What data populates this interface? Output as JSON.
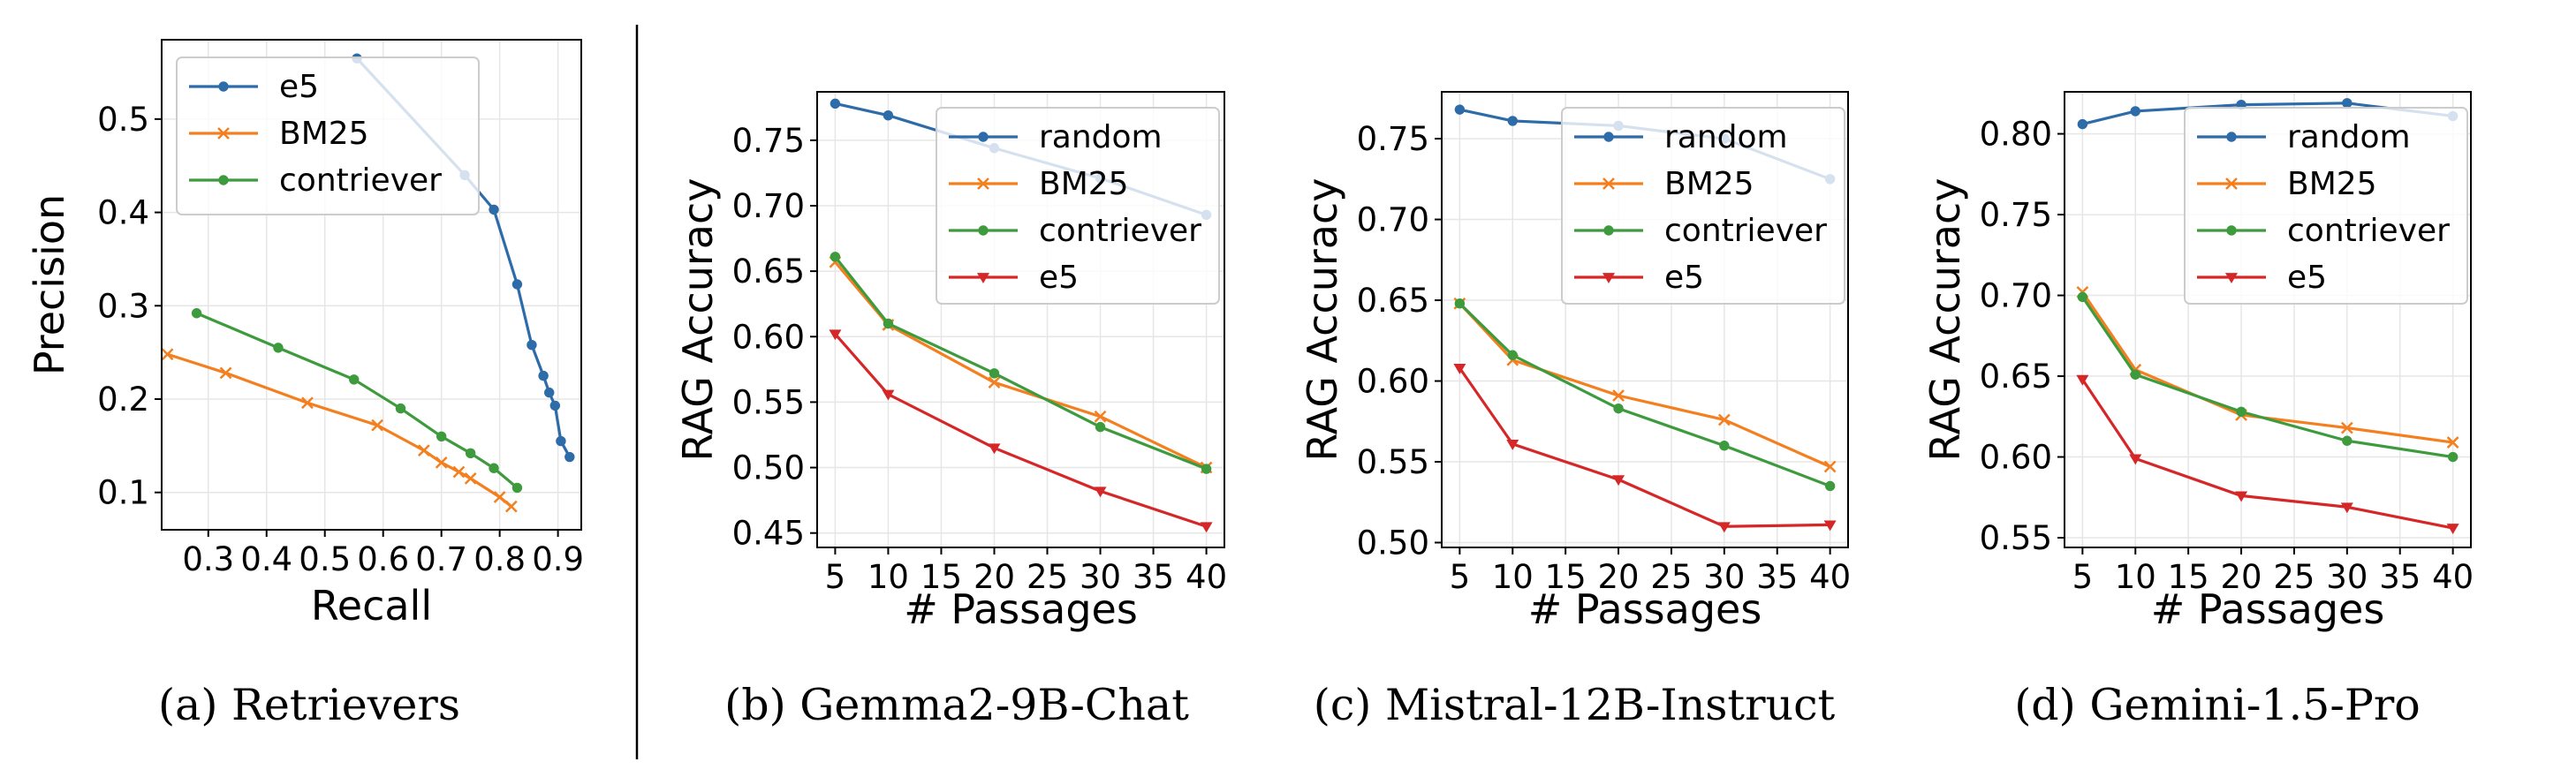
{
  "chart_data": [
    {
      "type": "line",
      "caption": "(a)  Retrievers",
      "xlabel": "Recall",
      "ylabel": "Precision",
      "xlim": [
        0.22,
        0.94
      ],
      "ylim": [
        0.06,
        0.585
      ],
      "xticks": [
        0.3,
        0.4,
        0.5,
        0.6,
        0.7,
        0.8,
        0.9
      ],
      "xtick_labels": [
        "0.3",
        "0.4",
        "0.5",
        "0.6",
        "0.7",
        "0.8",
        "0.9"
      ],
      "yticks": [
        0.1,
        0.2,
        0.3,
        0.4,
        0.5
      ],
      "ytick_labels": [
        "0.1",
        "0.2",
        "0.3",
        "0.4",
        "0.5"
      ],
      "grid": true,
      "legend_position": "top-left",
      "series": [
        {
          "name": "e5",
          "color": "#2d6ba9",
          "marker": "dot",
          "x": [
            0.555,
            0.74,
            0.79,
            0.83,
            0.855,
            0.875,
            0.885,
            0.895,
            0.905,
            0.92
          ],
          "y": [
            0.565,
            0.44,
            0.403,
            0.323,
            0.258,
            0.225,
            0.207,
            0.193,
            0.155,
            0.138
          ]
        },
        {
          "name": "BM25",
          "color": "#f47f1f",
          "marker": "x",
          "x": [
            0.23,
            0.33,
            0.47,
            0.59,
            0.67,
            0.7,
            0.73,
            0.75,
            0.8,
            0.82
          ],
          "y": [
            0.248,
            0.228,
            0.196,
            0.172,
            0.145,
            0.132,
            0.122,
            0.115,
            0.095,
            0.085
          ]
        },
        {
          "name": "contriever",
          "color": "#3d9b3d",
          "marker": "dot",
          "x": [
            0.28,
            0.42,
            0.55,
            0.63,
            0.7,
            0.75,
            0.79,
            0.83
          ],
          "y": [
            0.292,
            0.255,
            0.221,
            0.19,
            0.16,
            0.142,
            0.126,
            0.105
          ]
        }
      ]
    },
    {
      "type": "line",
      "caption": "(b)  Gemma2-9B-Chat",
      "xlabel": "# Passages",
      "ylabel": "RAG Accuracy",
      "xlim": [
        3.3,
        41.7
      ],
      "ylim": [
        0.439,
        0.787
      ],
      "xticks": [
        5,
        10,
        15,
        20,
        25,
        30,
        35,
        40
      ],
      "xtick_labels": [
        "5",
        "10",
        "15",
        "20",
        "25",
        "30",
        "35",
        "40"
      ],
      "yticks": [
        0.45,
        0.5,
        0.55,
        0.6,
        0.65,
        0.7,
        0.75
      ],
      "ytick_labels": [
        "0.45",
        "0.50",
        "0.55",
        "0.60",
        "0.65",
        "0.70",
        "0.75"
      ],
      "grid": true,
      "legend_position": "upper-right",
      "series": [
        {
          "name": "random",
          "color": "#2d6ba9",
          "marker": "dot",
          "x": [
            5,
            10,
            20,
            30,
            40
          ],
          "y": [
            0.778,
            0.769,
            0.744,
            0.721,
            0.693
          ]
        },
        {
          "name": "BM25",
          "color": "#f47f1f",
          "marker": "x",
          "x": [
            5,
            10,
            20,
            30,
            40
          ],
          "y": [
            0.657,
            0.609,
            0.565,
            0.539,
            0.5
          ]
        },
        {
          "name": "contriever",
          "color": "#3d9b3d",
          "marker": "dot",
          "x": [
            5,
            10,
            20,
            30,
            40
          ],
          "y": [
            0.661,
            0.61,
            0.572,
            0.531,
            0.499
          ]
        },
        {
          "name": "e5",
          "color": "#d62728",
          "marker": "triangle",
          "x": [
            5,
            10,
            20,
            30,
            40
          ],
          "y": [
            0.602,
            0.556,
            0.515,
            0.482,
            0.455
          ]
        }
      ]
    },
    {
      "type": "line",
      "caption": "(c)  Mistral-12B-Instruct",
      "xlabel": "# Passages",
      "ylabel": "RAG Accuracy",
      "xlim": [
        3.3,
        41.7
      ],
      "ylim": [
        0.497,
        0.779
      ],
      "xticks": [
        5,
        10,
        15,
        20,
        25,
        30,
        35,
        40
      ],
      "xtick_labels": [
        "5",
        "10",
        "15",
        "20",
        "25",
        "30",
        "35",
        "40"
      ],
      "yticks": [
        0.5,
        0.55,
        0.6,
        0.65,
        0.7,
        0.75
      ],
      "ytick_labels": [
        "0.50",
        "0.55",
        "0.60",
        "0.65",
        "0.70",
        "0.75"
      ],
      "grid": true,
      "legend_position": "upper-right",
      "series": [
        {
          "name": "random",
          "color": "#2d6ba9",
          "marker": "dot",
          "x": [
            5,
            10,
            20,
            30,
            40
          ],
          "y": [
            0.768,
            0.761,
            0.758,
            0.75,
            0.725
          ]
        },
        {
          "name": "BM25",
          "color": "#f47f1f",
          "marker": "x",
          "x": [
            5,
            10,
            20,
            30,
            40
          ],
          "y": [
            0.648,
            0.613,
            0.591,
            0.576,
            0.547
          ]
        },
        {
          "name": "contriever",
          "color": "#3d9b3d",
          "marker": "dot",
          "x": [
            5,
            10,
            20,
            30,
            40
          ],
          "y": [
            0.648,
            0.616,
            0.583,
            0.56,
            0.535
          ]
        },
        {
          "name": "e5",
          "color": "#d62728",
          "marker": "triangle",
          "x": [
            5,
            10,
            20,
            30,
            40
          ],
          "y": [
            0.608,
            0.561,
            0.539,
            0.51,
            0.511
          ]
        }
      ]
    },
    {
      "type": "line",
      "caption": "(d)  Gemini-1.5-Pro",
      "xlabel": "# Passages",
      "ylabel": "RAG Accuracy",
      "xlim": [
        3.3,
        41.7
      ],
      "ylim": [
        0.544,
        0.826
      ],
      "xticks": [
        5,
        10,
        15,
        20,
        25,
        30,
        35,
        40
      ],
      "xtick_labels": [
        "5",
        "10",
        "15",
        "20",
        "25",
        "30",
        "35",
        "40"
      ],
      "yticks": [
        0.55,
        0.6,
        0.65,
        0.7,
        0.75,
        0.8
      ],
      "ytick_labels": [
        "0.55",
        "0.60",
        "0.65",
        "0.70",
        "0.75",
        "0.80"
      ],
      "grid": true,
      "legend_position": "upper-right",
      "series": [
        {
          "name": "random",
          "color": "#2d6ba9",
          "marker": "dot",
          "x": [
            5,
            10,
            20,
            30,
            40
          ],
          "y": [
            0.806,
            0.814,
            0.818,
            0.819,
            0.811
          ]
        },
        {
          "name": "BM25",
          "color": "#f47f1f",
          "marker": "x",
          "x": [
            5,
            10,
            20,
            30,
            40
          ],
          "y": [
            0.702,
            0.654,
            0.626,
            0.618,
            0.609
          ]
        },
        {
          "name": "contriever",
          "color": "#3d9b3d",
          "marker": "dot",
          "x": [
            5,
            10,
            20,
            30,
            40
          ],
          "y": [
            0.699,
            0.651,
            0.628,
            0.61,
            0.6
          ]
        },
        {
          "name": "e5",
          "color": "#d62728",
          "marker": "triangle",
          "x": [
            5,
            10,
            20,
            30,
            40
          ],
          "y": [
            0.648,
            0.599,
            0.576,
            0.569,
            0.556
          ]
        }
      ]
    }
  ]
}
